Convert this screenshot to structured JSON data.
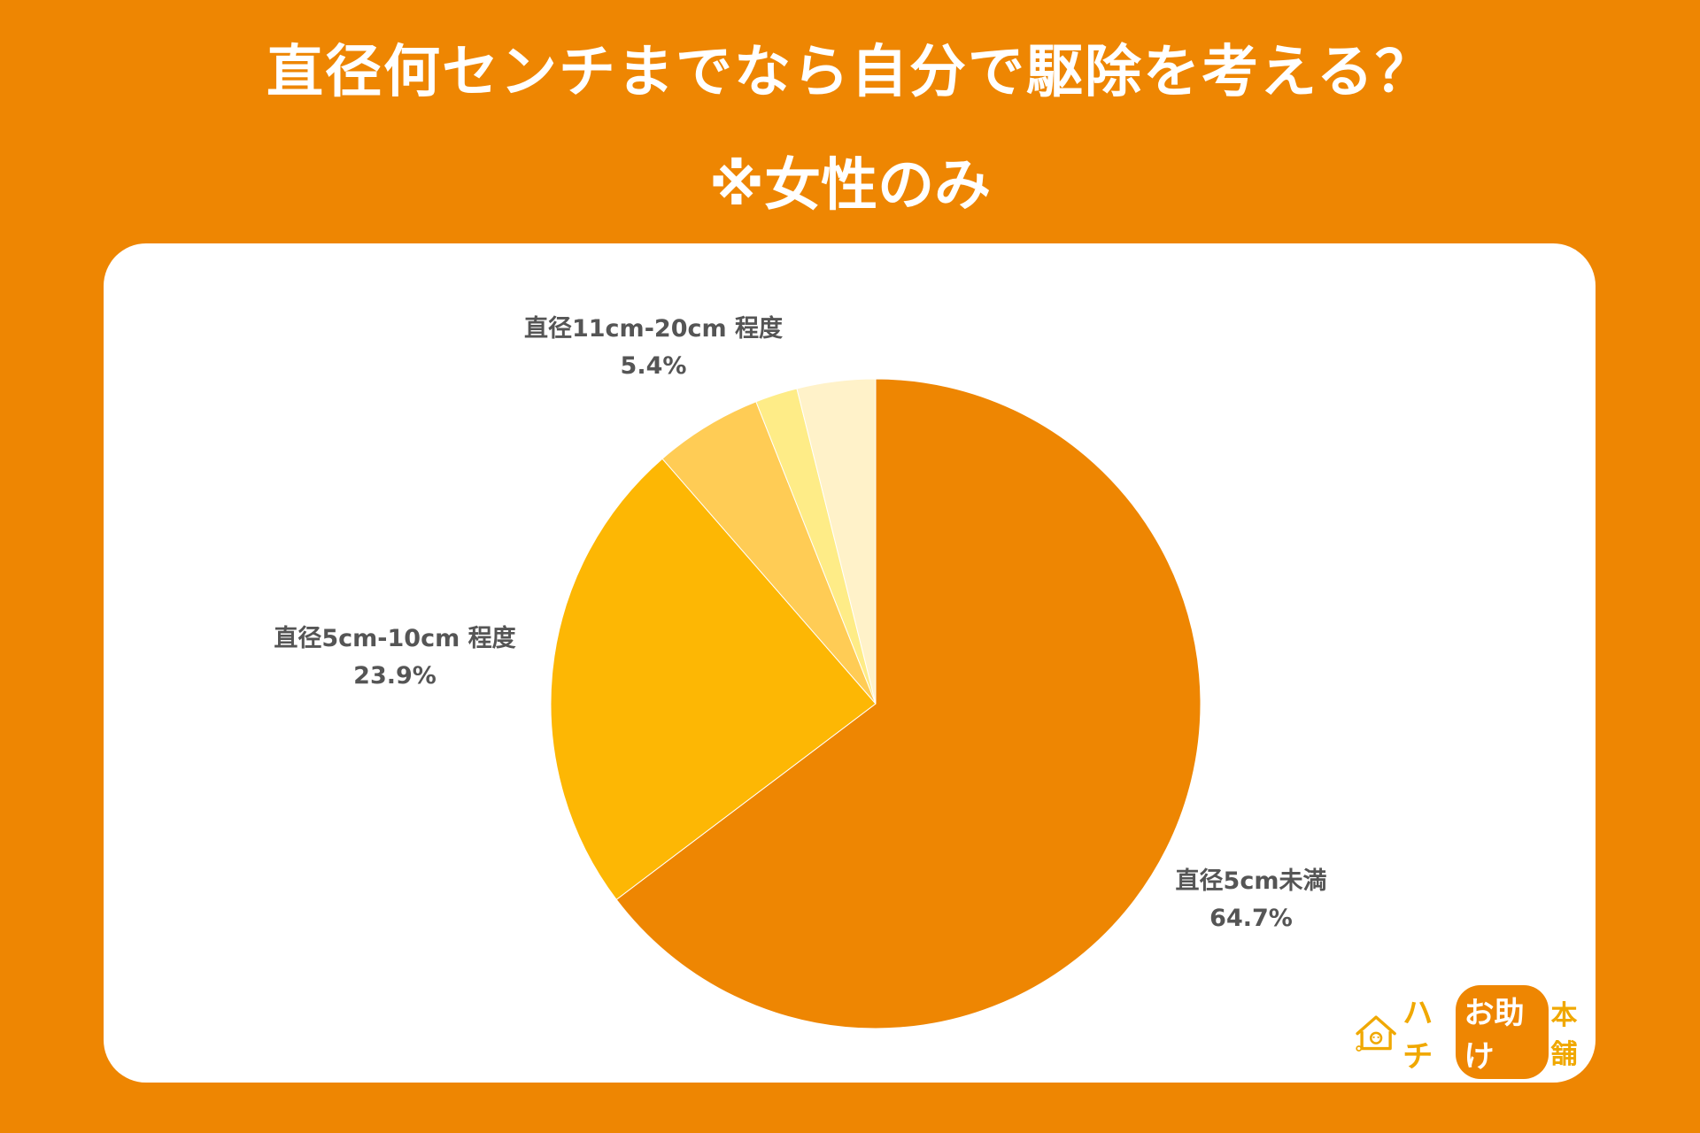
{
  "title_line1": "直径何センチまでなら自分で駆除を考える？",
  "title_line2": "※女性のみ",
  "chart_data": {
    "type": "pie",
    "slices": [
      {
        "name": "直径5cm未満",
        "value": 64.7,
        "label": "64.7%",
        "color": "#ee8602"
      },
      {
        "name": "直径5cm-10cm 程度",
        "value": 23.9,
        "label": "23.9%",
        "color": "#fdb704"
      },
      {
        "name": "直径11cm-20cm 程度",
        "value": 5.4,
        "label": "5.4%",
        "color": "#ffcc55"
      },
      {
        "name": "",
        "value": 2.1,
        "label": "",
        "color": "#feec87"
      },
      {
        "name": "",
        "value": 3.9,
        "label": "",
        "color": "#fff2c9"
      }
    ],
    "start": "12 o'clock",
    "direction": "clockwise"
  },
  "logo": {
    "part1": "ハチ",
    "part2": "お助け",
    "part3": "本舗"
  }
}
